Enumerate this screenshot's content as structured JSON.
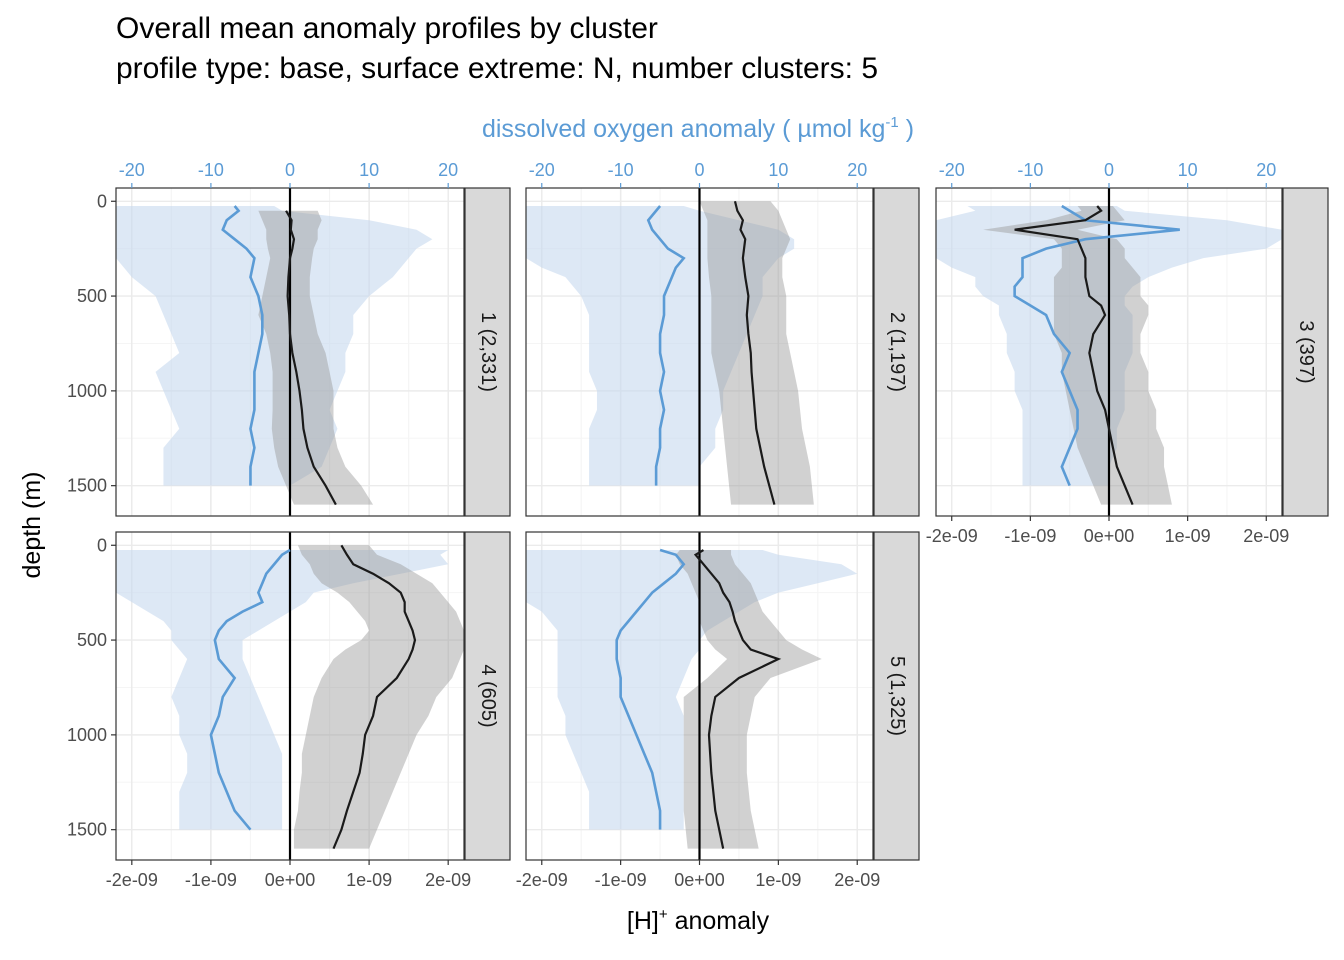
{
  "title": "Overall mean anomaly profiles by cluster",
  "subtitle": "profile type: base, surface extreme: N, number clusters: 5",
  "colors": {
    "oxygen": "#5b9bd5",
    "oxygen_band": "#c6d9ef",
    "hplus": "#1a1a1a",
    "hplus_band": "#9a9a9a",
    "strip": "#d9d9d9",
    "grid_major": "#ebebeb",
    "grid_minor": "#f5f5f5"
  },
  "chart_data": {
    "type": "line",
    "facet_layout": "3 columns x 2 rows, facet strips on right",
    "xlabel_bottom": "[H]",
    "xlabel_bottom_sup": "+",
    "xlabel_bottom_suffix": " anomaly",
    "xlabel_top": "dissolved oxygen anomaly ( µmol kg",
    "xlabel_top_sup": "-1",
    "xlabel_top_suffix": " )",
    "ylabel": "depth (m)",
    "ylim": [
      1660,
      -70
    ],
    "y_reversed": true,
    "yticks": [
      0,
      500,
      1000,
      1500
    ],
    "yticklabels": [
      "0",
      "500",
      "1000",
      "1500"
    ],
    "xlim_hplus": [
      -2.2e-09,
      2.2e-09
    ],
    "xticks_hplus": [
      -2e-09,
      -1e-09,
      0,
      1e-09,
      2e-09
    ],
    "xticklabels_hplus": [
      "-2e-09",
      "-1e-09",
      "0e+00",
      "1e-09",
      "2e-09"
    ],
    "xlim_oxygen": [
      -22,
      22
    ],
    "xticks_oxygen": [
      -20,
      -10,
      0,
      10,
      20
    ],
    "xticklabels_oxygen": [
      "-20",
      "-10",
      "0",
      "10",
      "20"
    ],
    "panels": [
      {
        "label": "1 (2,331)",
        "hplus": {
          "depth": [
            50,
            100,
            150,
            200,
            250,
            300,
            400,
            500,
            600,
            700,
            800,
            900,
            1000,
            1100,
            1200,
            1300,
            1400,
            1500,
            1600
          ],
          "mean": [
            -5e-11,
            2e-11,
            1e-11,
            5e-11,
            3e-11,
            0.0,
            -2e-11,
            -3e-11,
            -1e-11,
            0.0,
            3e-11,
            8e-11,
            1.2e-10,
            1.5e-10,
            1.7e-10,
            2.2e-10,
            3e-10,
            4.5e-10,
            5.8e-10
          ],
          "lower": [
            -4e-10,
            -3.5e-10,
            -3e-10,
            -3e-10,
            -2.8e-10,
            -2.5e-10,
            -3e-10,
            -3.5e-10,
            -4e-10,
            -3e-10,
            -2.5e-10,
            -2.2e-10,
            -2.2e-10,
            -2.2e-10,
            -2.3e-10,
            -2e-10,
            -1.5e-10,
            -5e-11,
            5e-11
          ],
          "upper": [
            3.5e-10,
            4e-10,
            3.5e-10,
            3.5e-10,
            3e-10,
            2.8e-10,
            2.5e-10,
            2.5e-10,
            3e-10,
            3.5e-10,
            4.5e-10,
            5e-10,
            5.5e-10,
            5.5e-10,
            5.5e-10,
            6e-10,
            7e-10,
            9e-10,
            1.05e-09
          ]
        },
        "oxygen": {
          "depth": [
            25,
            50,
            100,
            150,
            200,
            250,
            300,
            400,
            500,
            600,
            700,
            800,
            900,
            1000,
            1100,
            1200,
            1300,
            1400,
            1500
          ],
          "mean": [
            -7,
            -6.5,
            -8,
            -8.5,
            -7,
            -5.5,
            -4.5,
            -5,
            -4,
            -3.5,
            -3.5,
            -4,
            -4.5,
            -4.5,
            -4.5,
            -5,
            -4.5,
            -5,
            -5
          ],
          "lower": [
            -22,
            -22,
            -22,
            -22,
            -22,
            -22,
            -22,
            -20,
            -17,
            -16,
            -15,
            -14,
            -17,
            -16,
            -15,
            -14,
            -16,
            -16,
            -16
          ],
          "upper": [
            -2,
            -1,
            10,
            16,
            18,
            16,
            15,
            13,
            10,
            8,
            8,
            7,
            7,
            6,
            5,
            6,
            5,
            4,
            0
          ]
        }
      },
      {
        "label": "2 (1,197)",
        "hplus": {
          "depth": [
            0,
            50,
            100,
            150,
            200,
            300,
            400,
            500,
            600,
            700,
            800,
            900,
            1000,
            1200,
            1400,
            1600
          ],
          "mean": [
            4.5e-10,
            4.8e-10,
            5.5e-10,
            5.2e-10,
            5.8e-10,
            5.5e-10,
            5.8e-10,
            6.2e-10,
            6e-10,
            6.2e-10,
            6.5e-10,
            6.6e-10,
            6.8e-10,
            7.2e-10,
            8.2e-10,
            9.5e-10
          ],
          "lower": [
            0.0,
            5e-11,
            1e-10,
            1e-10,
            1e-10,
            1e-10,
            1.2e-10,
            1.5e-10,
            1.5e-10,
            1.5e-10,
            1.5e-10,
            2e-10,
            2.5e-10,
            3e-10,
            3.5e-10,
            4e-10
          ],
          "upper": [
            9e-10,
            1e-09,
            1.05e-09,
            1.1e-09,
            1.15e-09,
            1.05e-09,
            1.05e-09,
            1.1e-09,
            1.1e-09,
            1.1e-09,
            1.15e-09,
            1.2e-09,
            1.25e-09,
            1.3e-09,
            1.4e-09,
            1.45e-09
          ]
        },
        "oxygen": {
          "depth": [
            25,
            50,
            100,
            150,
            200,
            250,
            300,
            350,
            400,
            500,
            600,
            700,
            800,
            900,
            1000,
            1100,
            1200,
            1300,
            1400,
            1500
          ],
          "mean": [
            -5,
            -5.5,
            -6.5,
            -6,
            -5,
            -4,
            -2,
            -3,
            -3.5,
            -4.5,
            -4.5,
            -5,
            -5,
            -4.5,
            -5,
            -4.5,
            -5,
            -5,
            -5.5,
            -5.5
          ],
          "lower": [
            -22,
            -22,
            -22,
            -22,
            -22,
            -22,
            -22,
            -20,
            -17,
            -15,
            -14,
            -14,
            -14,
            -14,
            -13,
            -13,
            -14,
            -14,
            -14,
            -14
          ],
          "upper": [
            -2,
            0,
            5,
            10,
            12,
            12,
            10,
            9,
            8,
            8,
            7,
            6,
            5,
            4,
            3,
            3,
            2,
            2,
            0,
            0
          ]
        }
      },
      {
        "label": "3 (397)",
        "hplus": {
          "depth": [
            25,
            50,
            100,
            150,
            200,
            250,
            300,
            350,
            400,
            500,
            550,
            600,
            700,
            800,
            900,
            1000,
            1100,
            1200,
            1300,
            1400,
            1500,
            1600
          ],
          "mean": [
            -1.5e-10,
            -1e-10,
            -3e-10,
            -1.2e-09,
            -4e-10,
            -3.5e-10,
            -3e-10,
            -3e-10,
            -3e-10,
            -2.5e-10,
            -1e-10,
            -5e-11,
            -2e-10,
            -2.5e-10,
            -2e-10,
            -1.5e-10,
            -5e-11,
            0.0,
            5e-11,
            1e-10,
            2e-10,
            3e-10
          ]
        },
        "oxygen": {
          "depth": [
            25,
            50,
            100,
            150,
            200,
            250,
            300,
            350,
            400,
            450,
            500,
            550,
            600,
            700,
            800,
            900,
            1000,
            1100,
            1200,
            1300,
            1400,
            1500
          ],
          "mean": [
            -6,
            -5,
            -3,
            9,
            -3,
            -8,
            -11,
            -11,
            -11,
            -12,
            -12,
            -10,
            -8,
            -7,
            -5,
            -6,
            -5,
            -4,
            -4,
            -5,
            -6,
            -5
          ],
          "lower": [
            -18,
            -17,
            -22,
            -22,
            -22,
            -22,
            -22,
            -20,
            -17,
            -17,
            -16,
            -14,
            -14,
            -13,
            -13,
            -12,
            -12,
            -11,
            -11,
            -11,
            -11,
            -11
          ],
          "upper": [
            1,
            2,
            15,
            22,
            22,
            20,
            12,
            8,
            5,
            3,
            2,
            2,
            3,
            3,
            3,
            2,
            2,
            2,
            1,
            1,
            0,
            0
          ]
        },
        "hplus_lower": [
          -4e-10,
          -3.5e-10,
          -8e-10,
          -1.6e-09,
          -7e-10,
          -6e-10,
          -6e-10,
          -6e-10,
          -7e-10,
          -7e-10,
          -7e-10,
          -7e-10,
          -7e-10,
          -6e-10,
          -6e-10,
          -5.5e-10,
          -5e-10,
          -4.5e-10,
          -4e-10,
          -3e-10,
          -2e-10,
          -1e-10
        ],
        "hplus_upper": [
          5e-11,
          1e-10,
          2e-10,
          -4e-10,
          1e-10,
          2e-10,
          2e-10,
          3e-10,
          4e-10,
          4e-10,
          5e-10,
          5e-10,
          4e-10,
          4e-10,
          5e-10,
          5e-10,
          6e-10,
          6e-10,
          7e-10,
          7e-10,
          7.5e-10,
          8e-10
        ]
      },
      {
        "label": "4 (605)",
        "hplus": {
          "depth": [
            0,
            50,
            100,
            150,
            200,
            250,
            300,
            350,
            400,
            450,
            500,
            550,
            600,
            700,
            800,
            900,
            1000,
            1100,
            1200,
            1300,
            1400,
            1500,
            1600
          ],
          "mean": [
            6.5e-10,
            7.2e-10,
            8e-10,
            1.05e-09,
            1.25e-09,
            1.4e-09,
            1.45e-09,
            1.45e-09,
            1.5e-09,
            1.55e-09,
            1.58e-09,
            1.55e-09,
            1.5e-09,
            1.35e-09,
            1.1e-09,
            1.05e-09,
            9.5e-10,
            9.2e-10,
            8.8e-10,
            8e-10,
            7.2e-10,
            6.5e-10,
            5.5e-10
          ],
          "lower": [
            1e-10,
            1.5e-10,
            2.5e-10,
            3e-10,
            4e-10,
            6e-10,
            7.5e-10,
            8.5e-10,
            9.5e-10,
            1e-09,
            9e-10,
            7e-10,
            5.5e-10,
            4e-10,
            3e-10,
            2.5e-10,
            2e-10,
            1.5e-10,
            1.5e-10,
            1.2e-10,
            1e-10,
            5e-11,
            5e-11
          ],
          "upper": [
            1e-09,
            1.1e-09,
            1.4e-09,
            1.6e-09,
            1.8e-09,
            1.9e-09,
            2e-09,
            2.1e-09,
            2.15e-09,
            2.2e-09,
            2.2e-09,
            2.2e-09,
            2.15e-09,
            2.05e-09,
            1.85e-09,
            1.75e-09,
            1.6e-09,
            1.5e-09,
            1.4e-09,
            1.3e-09,
            1.2e-09,
            1.1e-09,
            1e-09
          ]
        },
        "oxygen": {
          "depth": [
            25,
            50,
            100,
            150,
            200,
            250,
            300,
            350,
            400,
            450,
            500,
            600,
            700,
            800,
            900,
            1000,
            1100,
            1200,
            1300,
            1400,
            1500
          ],
          "mean": [
            0,
            -1,
            -2,
            -3,
            -3.5,
            -4,
            -3.5,
            -6,
            -8,
            -9,
            -9.5,
            -9,
            -7,
            -8.5,
            -9,
            -10,
            -9.5,
            -9,
            -8,
            -7,
            -5
          ],
          "lower": [
            -22,
            -22,
            -22,
            -22,
            -22,
            -22,
            -20,
            -18,
            -16,
            -15,
            -15,
            -13,
            -14,
            -15,
            -14,
            -14,
            -13,
            -13,
            -14,
            -14,
            -14
          ],
          "upper": [
            20,
            19,
            20,
            14,
            8,
            3,
            2,
            0,
            -2,
            -4,
            -6,
            -6,
            -5,
            -4,
            -3,
            -2,
            -1,
            -1,
            -1,
            -1,
            -1
          ]
        }
      },
      {
        "label": "5 (1,325)",
        "hplus": {
          "depth": [
            25,
            50,
            100,
            150,
            200,
            250,
            300,
            350,
            400,
            450,
            500,
            550,
            600,
            700,
            800,
            900,
            1000,
            1200,
            1400,
            1600
          ],
          "mean": [
            5e-11,
            -5e-11,
            5e-11,
            1.5e-10,
            2.5e-10,
            3e-10,
            3.8e-10,
            4.2e-10,
            4.5e-10,
            5e-10,
            5.5e-10,
            6.5e-10,
            1e-09,
            5e-10,
            2e-10,
            1.5e-10,
            1.2e-10,
            1.5e-10,
            2e-10,
            3e-10
          ],
          "lower": [
            -2.5e-10,
            -3e-10,
            -2.5e-10,
            -1.5e-10,
            -1e-10,
            -5e-11,
            0.0,
            0.0,
            0.0,
            5e-11,
            1e-10,
            2e-10,
            3.5e-10,
            1e-10,
            -2e-10,
            -2e-10,
            -2e-10,
            -2e-10,
            -2e-10,
            -1.5e-10
          ],
          "upper": [
            4e-10,
            4e-10,
            4.5e-10,
            5.5e-10,
            6.5e-10,
            7e-10,
            7.5e-10,
            8e-10,
            9e-10,
            1e-09,
            1.1e-09,
            1.3e-09,
            1.55e-09,
            9e-10,
            7e-10,
            6.5e-10,
            6e-10,
            6e-10,
            6.5e-10,
            7.5e-10
          ]
        },
        "oxygen": {
          "depth": [
            25,
            50,
            100,
            150,
            200,
            250,
            300,
            350,
            400,
            450,
            500,
            550,
            600,
            700,
            800,
            900,
            1000,
            1100,
            1200,
            1300,
            1400,
            1500
          ],
          "mean": [
            -5,
            -3,
            -2,
            -3,
            -4.5,
            -6,
            -7,
            -8,
            -9,
            -10,
            -10.5,
            -10.5,
            -10.5,
            -10,
            -10,
            -9,
            -8,
            -7,
            -6,
            -5.5,
            -5,
            -5
          ],
          "lower": [
            -22,
            -22,
            -22,
            -22,
            -22,
            -22,
            -22,
            -20,
            -19,
            -18,
            -18,
            -18,
            -18,
            -18,
            -18,
            -17,
            -17,
            -16,
            -15,
            -14,
            -14,
            -14
          ],
          "upper": [
            8,
            10,
            18,
            20,
            15,
            10,
            7,
            5,
            3,
            1,
            0,
            0,
            -1,
            -2,
            -3,
            -2,
            -2,
            -2,
            -2,
            -2,
            -2,
            -2
          ]
        }
      }
    ]
  }
}
